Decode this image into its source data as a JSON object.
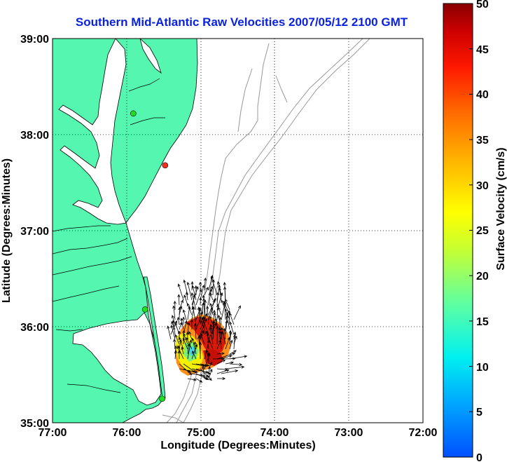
{
  "title": "Southern Mid-Atlantic Raw Velocities 2007/05/12 2100 GMT",
  "map": {
    "xlabel": "Longitude (Degrees:Minutes)",
    "ylabel": "Latitude (Degrees:Minutes)",
    "lon_ticks": [
      "77:00",
      "76:00",
      "75:00",
      "74:00",
      "73:00",
      "72:00"
    ],
    "lat_ticks": [
      "39:00",
      "38:00",
      "37:00",
      "36:00",
      "35:00"
    ],
    "lon_range": [
      -77,
      -72
    ],
    "lat_range": [
      35,
      39
    ],
    "grid": "dotted",
    "land_color": "#55f7b0",
    "coast_color": "#000000",
    "isobath_color": "#999999",
    "stations": [
      {
        "lon": -75.91,
        "lat": 38.22,
        "color": "#22dd22"
      },
      {
        "lon": -75.48,
        "lat": 37.68,
        "color": "#ee3322"
      },
      {
        "lon": -75.75,
        "lat": 36.18,
        "color": "#22dd22"
      },
      {
        "lon": -75.52,
        "lat": 35.25,
        "color": "#22dd22"
      }
    ]
  },
  "colorbar": {
    "label": "Surface Velocity (cm/s)",
    "ticks": [
      "0",
      "5",
      "10",
      "15",
      "20",
      "25",
      "30",
      "35",
      "40",
      "45",
      "50"
    ],
    "min": 0,
    "max": 50
  }
}
